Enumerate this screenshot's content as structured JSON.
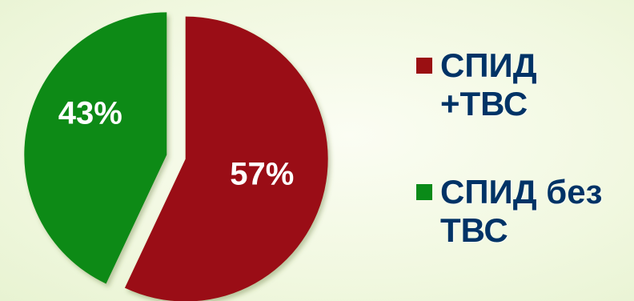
{
  "chart_data": {
    "type": "pie",
    "slices": [
      {
        "label": "СПИД +ТВС",
        "value": 57,
        "display": "57%",
        "color": "#9a0f12"
      },
      {
        "label": "СПИД без ТВС",
        "value": 43,
        "display": "43%",
        "color": "#0a8a18"
      }
    ],
    "legend_placement": "right",
    "exploded": true
  }
}
